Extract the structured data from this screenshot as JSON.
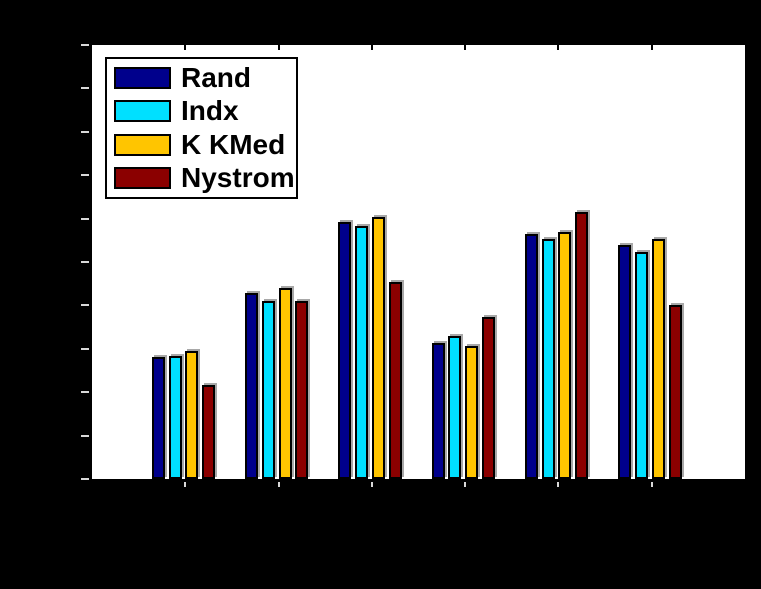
{
  "window": {
    "background_color": "#000000"
  },
  "plot": {
    "background_color": "#ffffff",
    "axis_color": "#000000",
    "tick_color": "#d9d9d9",
    "title_text_visible": false,
    "axis_labels_visible": false,
    "tick_labels_visible": false
  },
  "legend": {
    "position": "top-left",
    "items": [
      {
        "label": "Rand",
        "color": "#00008C"
      },
      {
        "label": "Indx",
        "color": "#00E0FF"
      },
      {
        "label": "K KMed",
        "color": "#FFC500"
      },
      {
        "label": "Nystrom",
        "color": "#8B0000"
      }
    ]
  },
  "chart_data": {
    "type": "bar",
    "title": "",
    "xlabel": "",
    "ylabel": "",
    "num_groups": 6,
    "grid": false,
    "ylim": [
      0,
      1
    ],
    "y_tick_count": 11,
    "y_tick_step_normalized": 0.1,
    "note": "axis tick labels, title and axis labels are not visible (black text on black background); values are normalized to the 10-interval y axis",
    "series": [
      {
        "name": "Rand",
        "color": "#00008C",
        "values": [
          0.28,
          0.429,
          0.593,
          0.314,
          0.564,
          0.539
        ]
      },
      {
        "name": "Indx",
        "color": "#00E0FF",
        "values": [
          0.284,
          0.41,
          0.583,
          0.33,
          0.552,
          0.524
        ]
      },
      {
        "name": "K KMed",
        "color": "#FFC500",
        "values": [
          0.295,
          0.439,
          0.603,
          0.307,
          0.568,
          0.552
        ]
      },
      {
        "name": "Nystrom",
        "color": "#8B0000",
        "values": [
          0.217,
          0.409,
          0.455,
          0.373,
          0.616,
          0.401
        ]
      }
    ]
  }
}
